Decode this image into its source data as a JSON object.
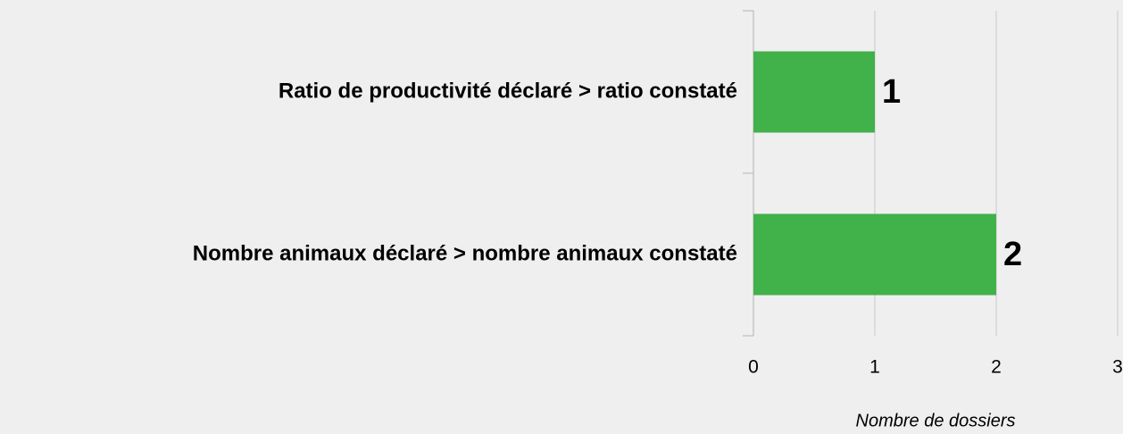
{
  "chart_data": {
    "type": "barh",
    "categories": [
      "Ratio de productivité déclaré > ratio constaté",
      "Nombre animaux déclaré > nombre animaux constaté"
    ],
    "values": [
      1,
      2
    ],
    "color": "#41b14a",
    "xlabel": "Nombre de dossiers",
    "xlim": [
      0,
      3
    ],
    "xticks": [
      0,
      1,
      2,
      3
    ],
    "grid": true
  }
}
